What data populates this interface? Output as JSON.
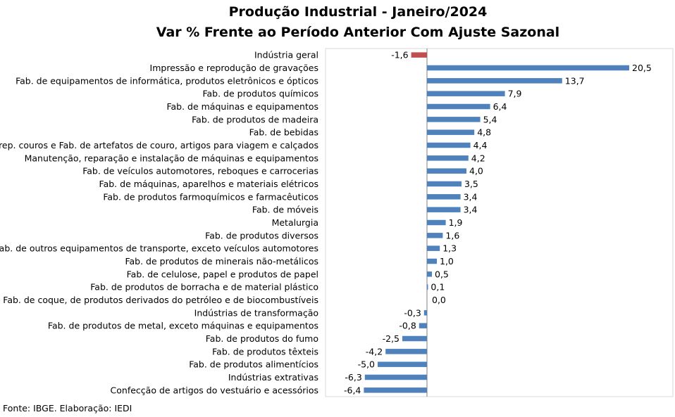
{
  "title": "Produção Industrial - Janeiro/2024",
  "subtitle": "Var % Frente ao Período Anterior Com Ajuste Sazonal",
  "source": "Fonte: IBGE. Elaboração: IEDI",
  "colors": {
    "positive": "#4f81bd",
    "highlight": "#c0504d",
    "axis": "#7f7f7f",
    "grid": "#d9d9d9"
  },
  "chart_data": {
    "type": "bar",
    "orientation": "horizontal",
    "xlim": [
      -8.5,
      25.5
    ],
    "grid": true,
    "categories": [
      "Indústria geral",
      "Impressão e reprodução de gravações",
      "Fab. de equipamentos de informática, produtos eletrônicos e ópticos",
      "Fab. de produtos químicos",
      "Fab. de máquinas e equipamentos",
      "Fab. de produtos de madeira",
      "Fab. de bebidas",
      "Prep. couros e Fab. de artefatos de couro, artigos para viagem e calçados",
      "Manutenção, reparação e instalação de máquinas e equipamentos",
      "Fab. de veículos automotores, reboques e carrocerias",
      "Fab. de máquinas, aparelhos e materiais elétricos",
      "Fab. de produtos farmoquímicos e farmacêuticos",
      "Fab. de móveis",
      "Metalurgia",
      "Fab. de produtos diversos",
      "Fab. de outros equipamentos de transporte, exceto veículos automotores",
      "Fab. de produtos de minerais não-metálicos",
      "Fab. de celulose, papel e produtos de papel",
      "Fab. de produtos de borracha e de material plástico",
      "Fab. de coque, de produtos derivados do petróleo e de biocombustíveis",
      "Indústrias de transformação",
      "Fab. de produtos de metal, exceto máquinas e equipamentos",
      "Fab. de produtos do fumo",
      "Fab. de produtos têxteis",
      "Fab. de produtos alimentícios",
      "Indústrias extrativas",
      "Confecção de artigos do vestuário e acessórios"
    ],
    "values": [
      -1.6,
      20.5,
      13.7,
      7.9,
      6.4,
      5.4,
      4.8,
      4.4,
      4.2,
      4.0,
      3.5,
      3.4,
      3.4,
      1.9,
      1.6,
      1.3,
      1.0,
      0.5,
      0.1,
      0.0,
      -0.3,
      -0.8,
      -2.5,
      -4.2,
      -5.0,
      -6.3,
      -6.4
    ],
    "data_labels": [
      "-1,6",
      "20,5",
      "13,7",
      "7,9",
      "6,4",
      "5,4",
      "4,8",
      "4,4",
      "4,2",
      "4,0",
      "3,5",
      "3,4",
      "3,4",
      "1,9",
      "1,6",
      "1,3",
      "1,0",
      "0,5",
      "0,1",
      "0,0",
      "-0,3",
      "-0,8",
      "-2,5",
      "-4,2",
      "-5,0",
      "-6,3",
      "-6,4"
    ],
    "highlight_index": 0
  }
}
